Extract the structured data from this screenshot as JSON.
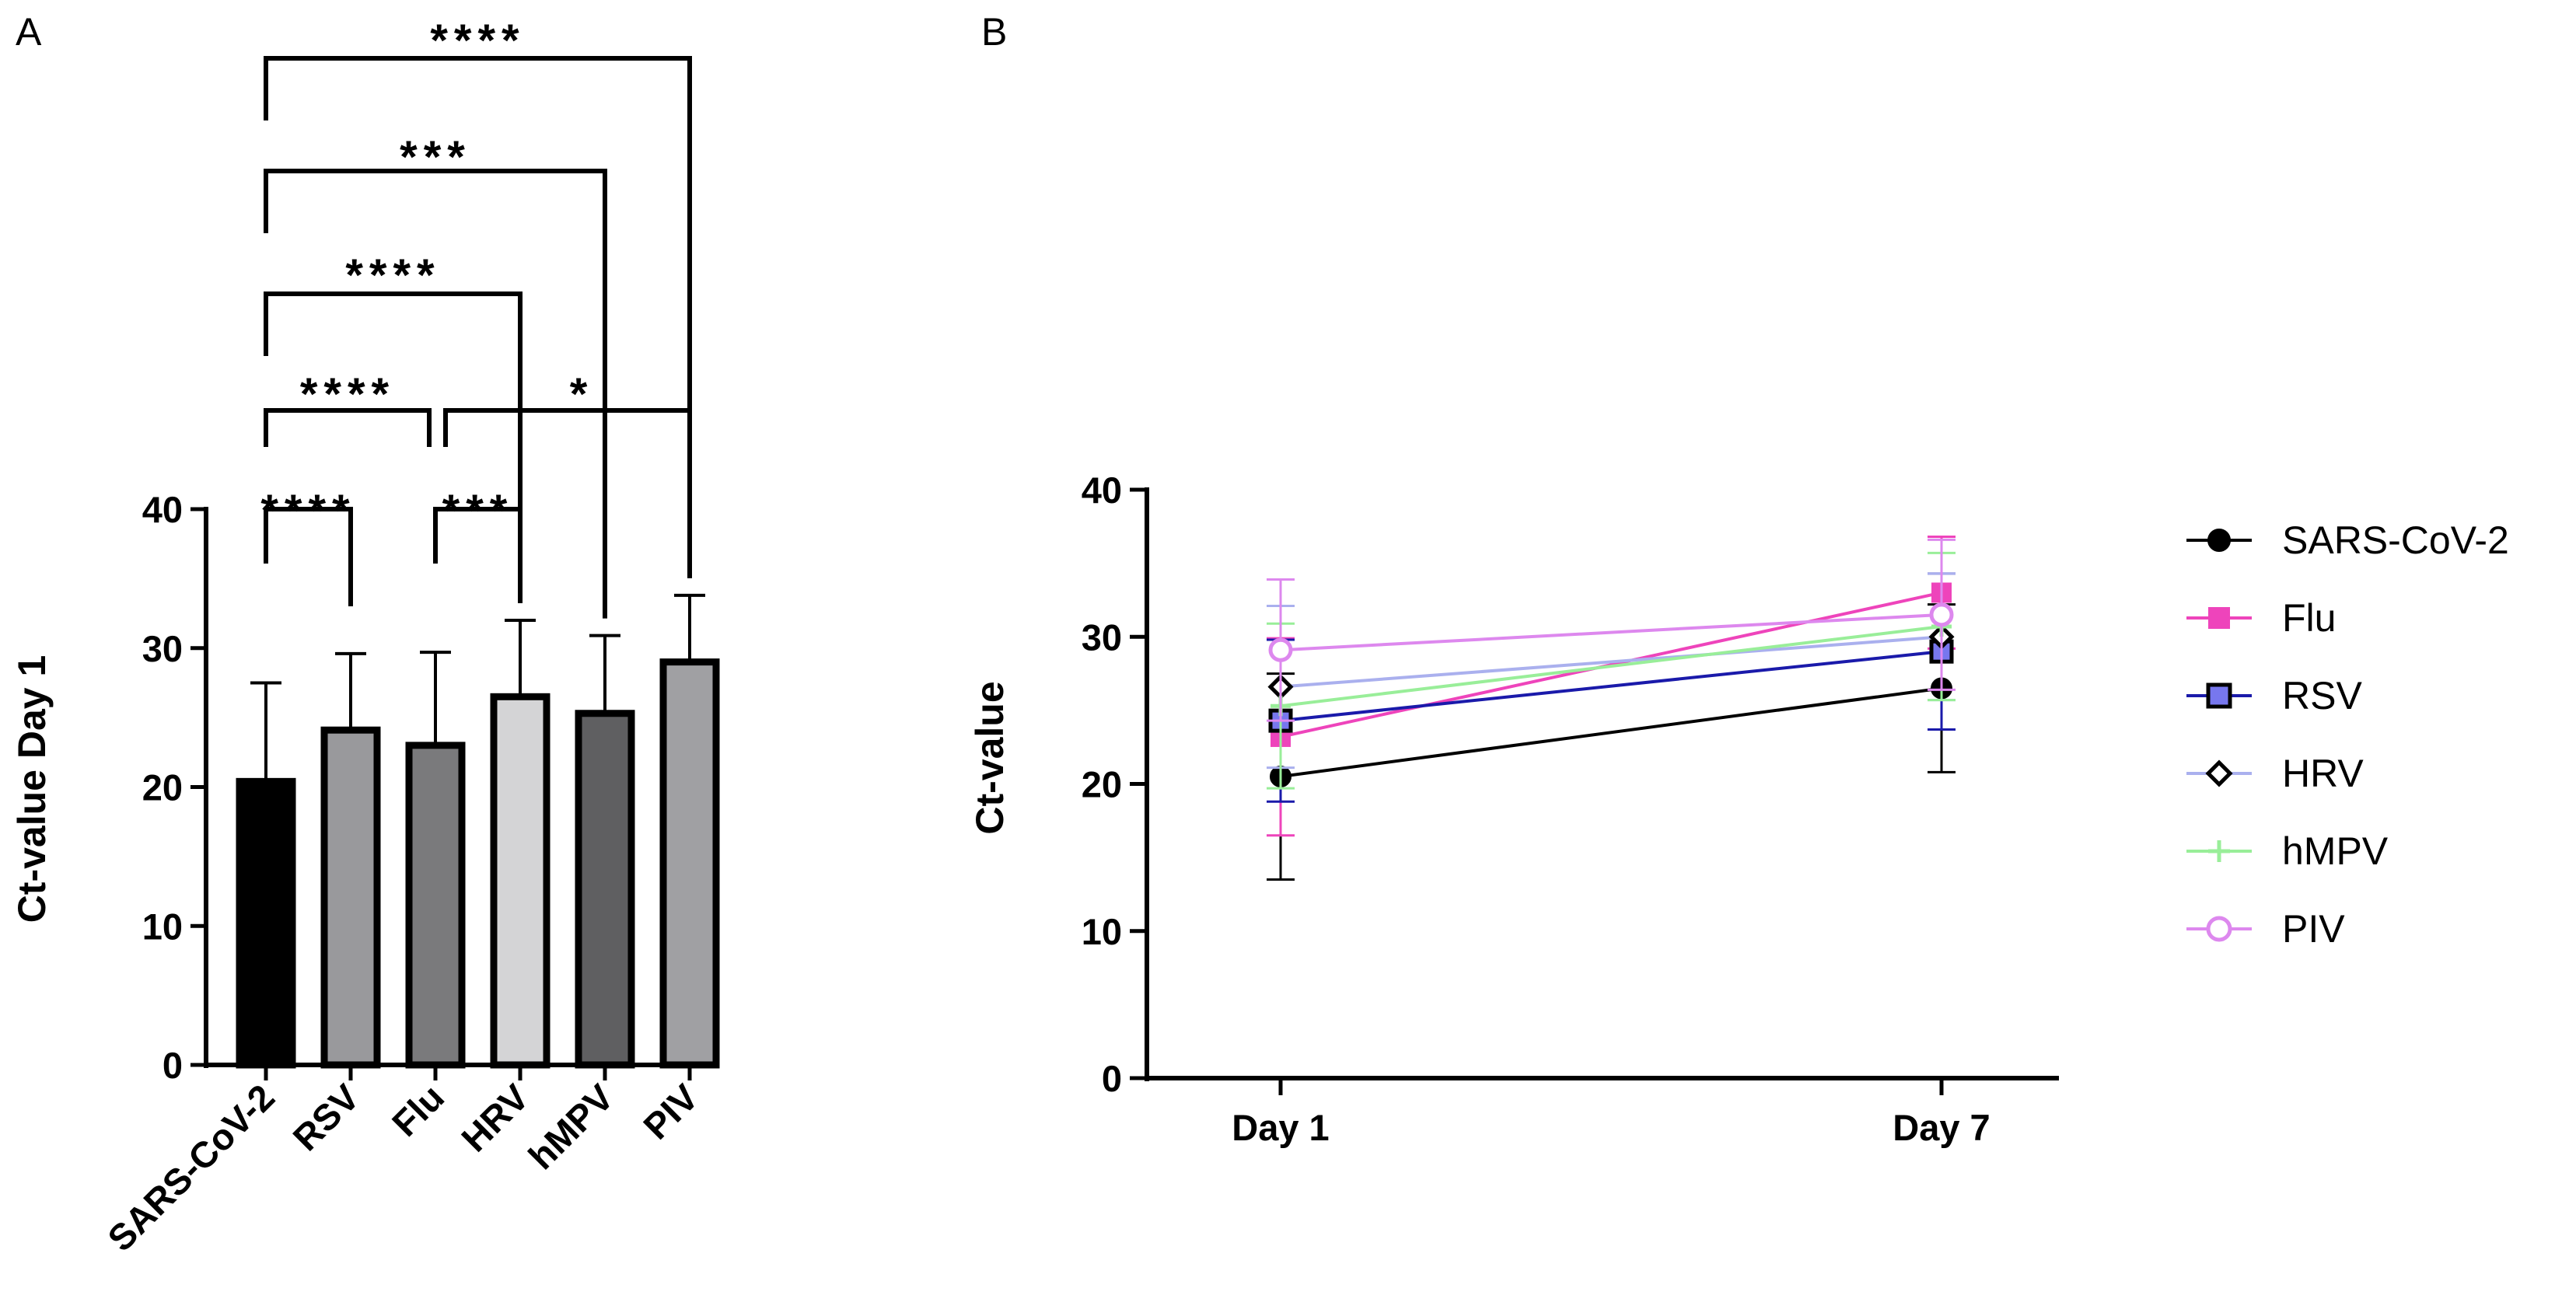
{
  "panels": {
    "a": {
      "label": "A",
      "chart_data": {
        "type": "bar",
        "title": "",
        "xlabel": "",
        "ylabel": "Ct-value Day 1",
        "ylim": [
          0,
          40
        ],
        "yticks": [
          0,
          10,
          20,
          30,
          40
        ],
        "categories": [
          "SARS-CoV-2",
          "RSV",
          "Flu",
          "HRV",
          "hMPV",
          "PIV"
        ],
        "values": [
          20.4,
          24.1,
          23.0,
          26.5,
          25.3,
          29.0
        ],
        "errors": [
          7.1,
          5.5,
          6.7,
          5.5,
          5.6,
          4.8
        ],
        "bar_colors": [
          "#000000",
          "#99999c",
          "#7a7a7c",
          "#d4d4d6",
          "#5f5f61",
          "#a0a0a3"
        ],
        "comparisons": [
          {
            "pair": [
              "SARS-CoV-2",
              "RSV"
            ],
            "stars": "****"
          },
          {
            "pair": [
              "Flu",
              "HRV"
            ],
            "stars": "***"
          },
          {
            "pair": [
              "SARS-CoV-2",
              "Flu"
            ],
            "stars": "****"
          },
          {
            "pair": [
              "Flu",
              "PIV"
            ],
            "stars": "*"
          },
          {
            "pair": [
              "SARS-CoV-2",
              "HRV"
            ],
            "stars": "****"
          },
          {
            "pair": [
              "SARS-CoV-2",
              "hMPV"
            ],
            "stars": "***"
          },
          {
            "pair": [
              "SARS-CoV-2",
              "PIV"
            ],
            "stars": "****"
          }
        ]
      }
    },
    "b": {
      "label": "B",
      "chart_data": {
        "type": "line",
        "title": "",
        "xlabel": "",
        "ylabel": "Ct-value",
        "ylim": [
          0,
          40
        ],
        "yticks": [
          0,
          10,
          20,
          30,
          40
        ],
        "categories": [
          "Day 1",
          "Day 7"
        ],
        "legend_position": "right",
        "series": [
          {
            "name": "SARS-CoV-2",
            "values": [
              20.5,
              26.5
            ],
            "errors": [
              7.0,
              5.7
            ],
            "color": "#000000",
            "marker": "circle"
          },
          {
            "name": "Flu",
            "values": [
              23.2,
              33.0
            ],
            "errors": [
              6.7,
              3.8
            ],
            "color": "#ee44bb",
            "marker": "square"
          },
          {
            "name": "RSV",
            "values": [
              24.3,
              29.0
            ],
            "errors": [
              5.5,
              5.3
            ],
            "color": "#1a1aaa",
            "marker": "square-outline"
          },
          {
            "name": "HRV",
            "values": [
              26.6,
              30.0
            ],
            "errors": [
              5.5,
              4.3
            ],
            "color": "#aab0ee",
            "marker": "diamond"
          },
          {
            "name": "hMPV",
            "values": [
              25.3,
              30.7
            ],
            "errors": [
              5.6,
              5.0
            ],
            "color": "#99ee99",
            "marker": "plus"
          },
          {
            "name": "PIV",
            "values": [
              29.1,
              31.5
            ],
            "errors": [
              4.8,
              5.1
            ],
            "color": "#dd88ee",
            "marker": "circle-open"
          }
        ]
      }
    }
  }
}
